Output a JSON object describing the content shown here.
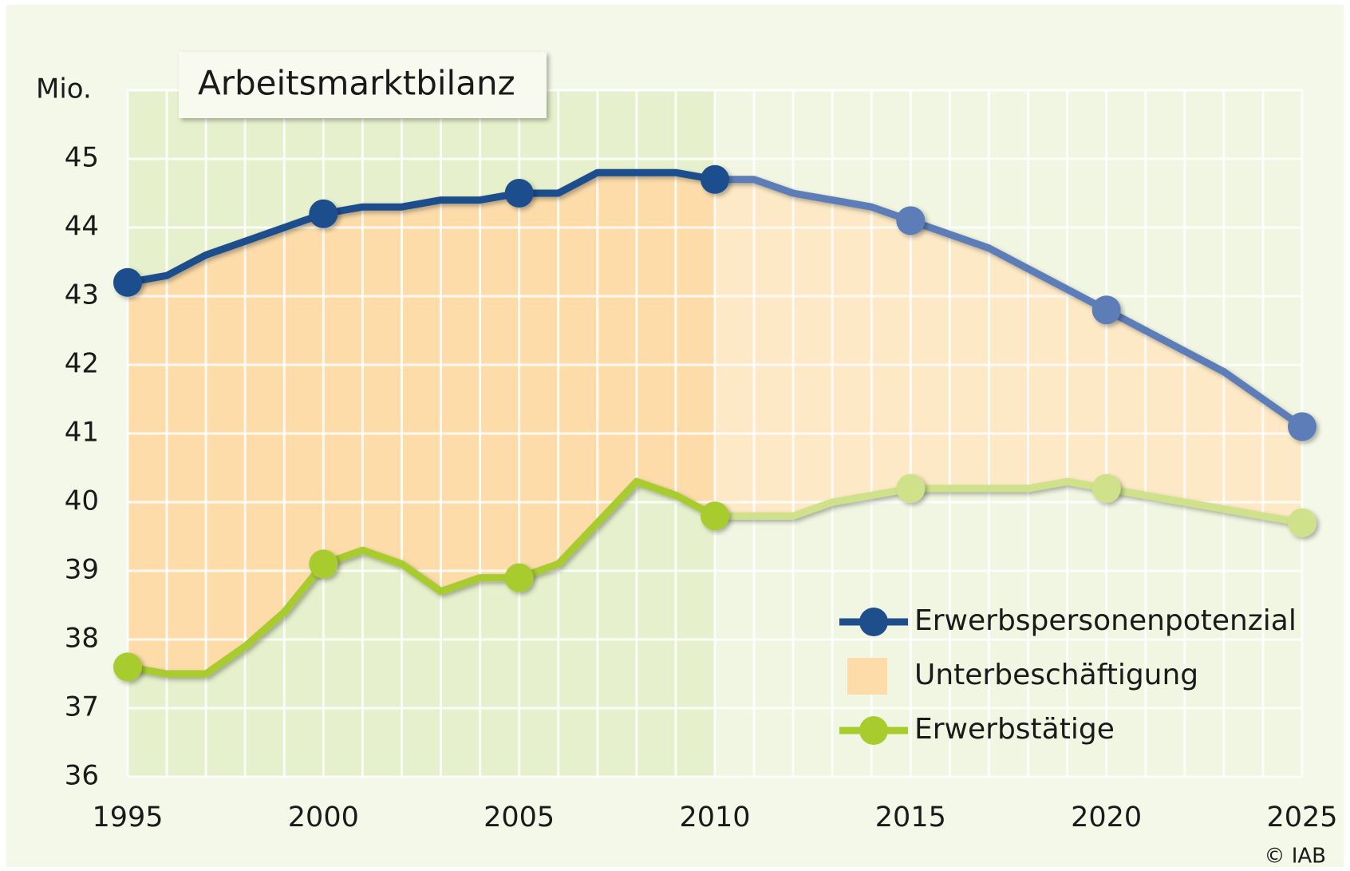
{
  "chart_data": {
    "type": "line",
    "title": "Arbeitsmarktbilanz",
    "y_unit": "Mio.",
    "source": "© IAB",
    "x": [
      1995,
      1996,
      1997,
      1998,
      1999,
      2000,
      2001,
      2002,
      2003,
      2004,
      2005,
      2006,
      2007,
      2008,
      2009,
      2010,
      2011,
      2012,
      2013,
      2014,
      2015,
      2016,
      2017,
      2018,
      2019,
      2020,
      2021,
      2022,
      2023,
      2024,
      2025
    ],
    "series": [
      {
        "name": "Erwerbspersonenpotenzial",
        "color": "#1f4e8c",
        "forecast_color": "#5b7db8",
        "values": [
          43.2,
          43.3,
          43.6,
          43.8,
          44.0,
          44.2,
          44.3,
          44.3,
          44.4,
          44.4,
          44.5,
          44.5,
          44.8,
          44.8,
          44.8,
          44.7,
          44.7,
          44.5,
          44.4,
          44.3,
          44.1,
          43.9,
          43.7,
          43.4,
          43.1,
          42.8,
          42.5,
          42.2,
          41.9,
          41.5,
          41.1
        ]
      },
      {
        "name": "Erwerbstätige",
        "color": "#a8cc2e",
        "forecast_color": "#cfe28a",
        "values": [
          37.6,
          37.5,
          37.5,
          37.9,
          38.4,
          39.1,
          39.3,
          39.1,
          38.7,
          38.9,
          38.9,
          39.1,
          39.7,
          40.3,
          40.1,
          39.8,
          39.8,
          39.8,
          40.0,
          40.1,
          40.2,
          40.2,
          40.2,
          40.2,
          40.3,
          40.2,
          40.1,
          40.0,
          39.9,
          39.8,
          39.7
        ]
      }
    ],
    "area": {
      "name": "Unterbeschäftigung",
      "color": "#fddcaa",
      "forecast_color": "#fde9c6"
    },
    "forecast_start": 2010,
    "xlim": [
      1995,
      2025
    ],
    "xticks": [
      1995,
      2000,
      2005,
      2010,
      2015,
      2020,
      2025
    ],
    "ylim": [
      36,
      46
    ],
    "yticks": [
      36,
      37,
      38,
      39,
      40,
      41,
      42,
      43,
      44,
      45
    ],
    "grid": true,
    "legend": "lower right"
  }
}
